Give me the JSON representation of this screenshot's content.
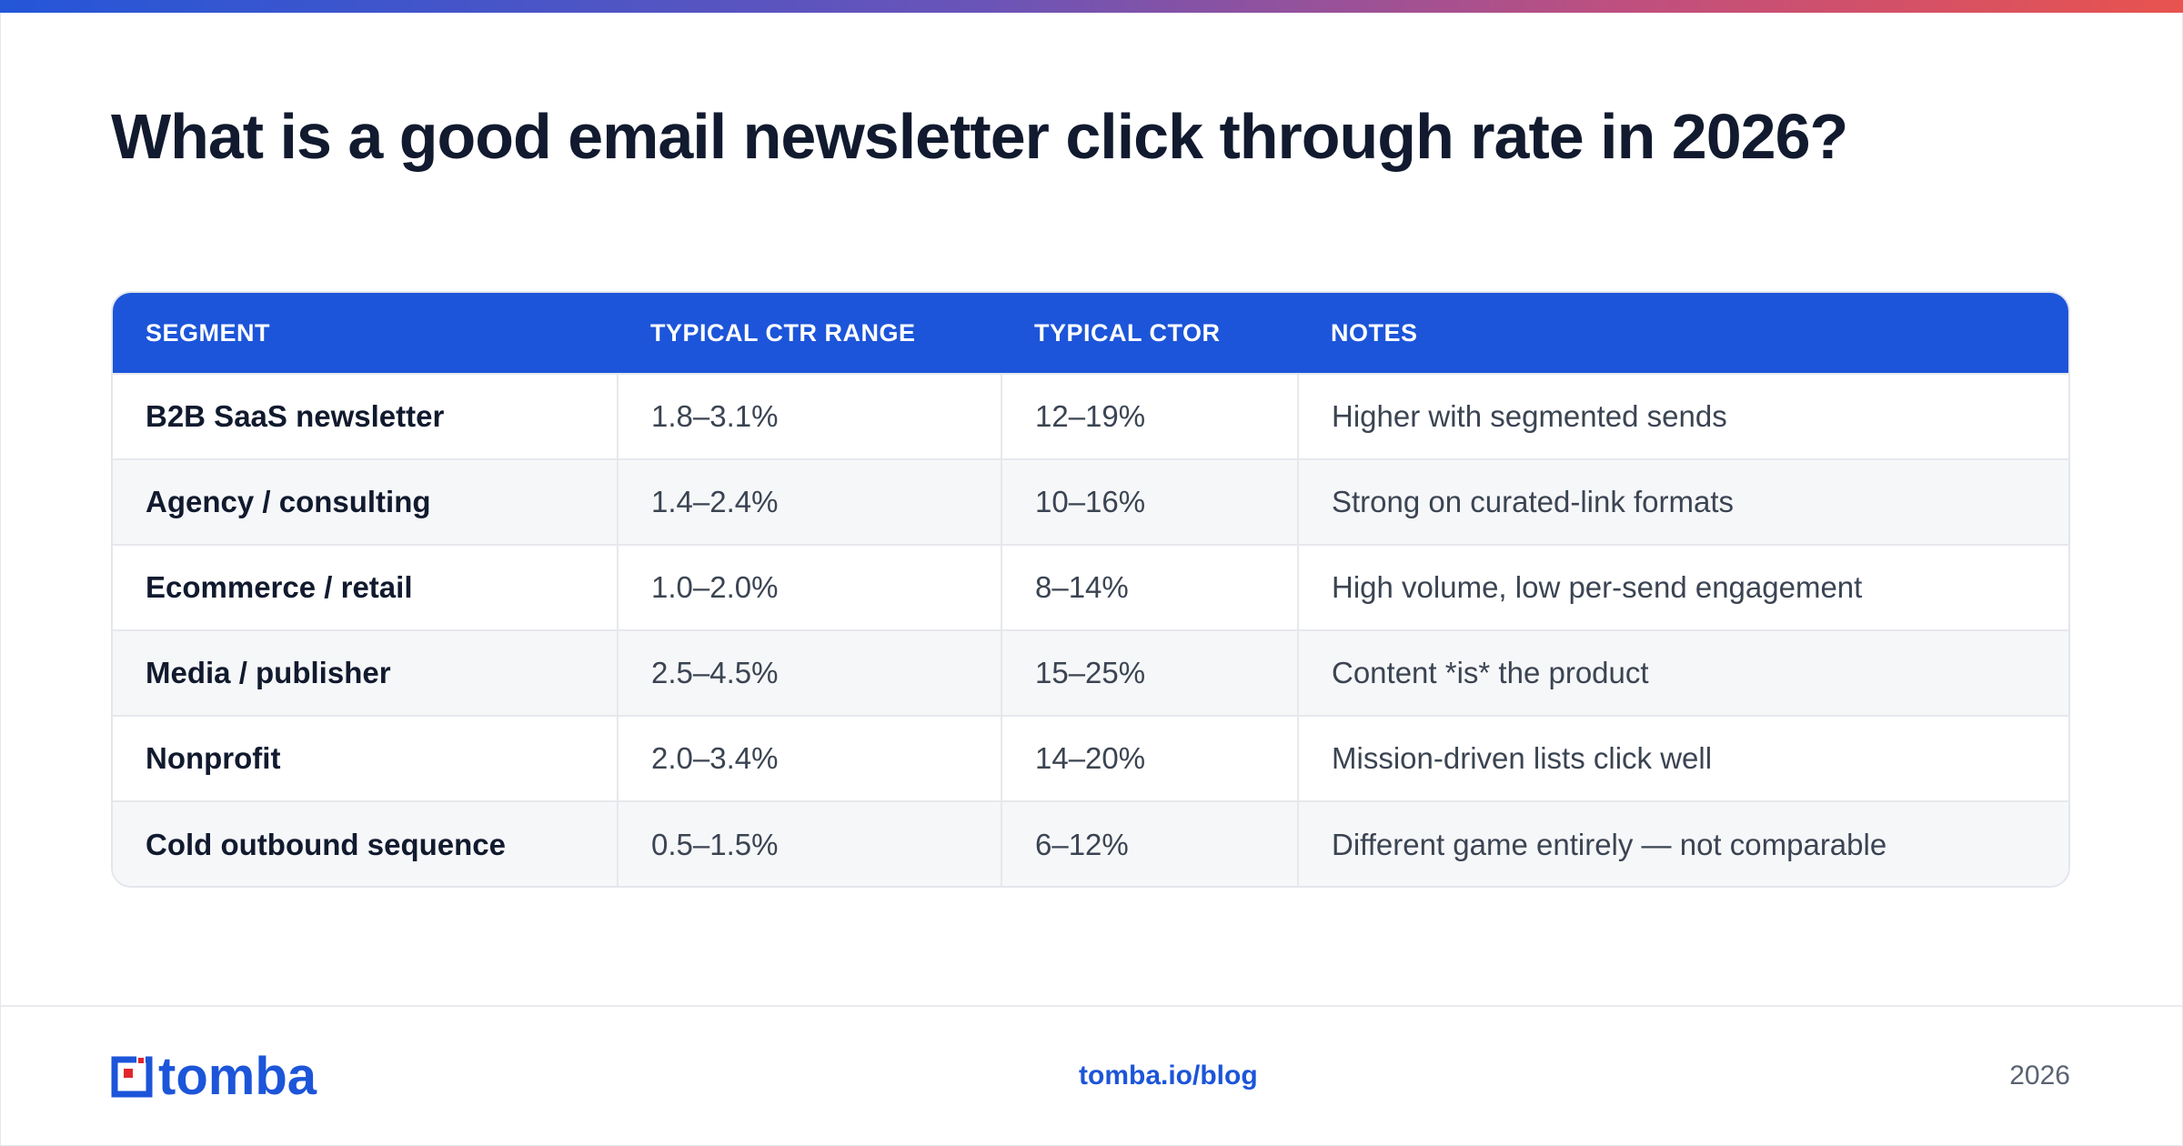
{
  "title": "What is a good email newsletter click through rate in 2026?",
  "table": {
    "headers": [
      "SEGMENT",
      "TYPICAL CTR RANGE",
      "TYPICAL CTOR",
      "NOTES"
    ],
    "rows": [
      [
        "B2B SaaS newsletter",
        "1.8–3.1%",
        "12–19%",
        "Higher with segmented sends"
      ],
      [
        "Agency / consulting",
        "1.4–2.4%",
        "10–16%",
        "Strong on curated-link formats"
      ],
      [
        "Ecommerce / retail",
        "1.0–2.0%",
        "8–14%",
        "High volume, low per-send engagement"
      ],
      [
        "Media / publisher",
        "2.5–4.5%",
        "15–25%",
        "Content *is* the product"
      ],
      [
        "Nonprofit",
        "2.0–3.4%",
        "14–20%",
        "Mission-driven lists click well"
      ],
      [
        "Cold outbound sequence",
        "0.5–1.5%",
        "6–12%",
        "Different game entirely — not comparable"
      ]
    ]
  },
  "footer": {
    "logo_text": "tomba",
    "link": "tomba.io/blog",
    "year": "2026"
  },
  "colors": {
    "accent": "#1c55d9",
    "logo_red": "#e0262c",
    "title": "#111a2e"
  },
  "icons": {
    "logo": "tomba-logo-icon"
  }
}
